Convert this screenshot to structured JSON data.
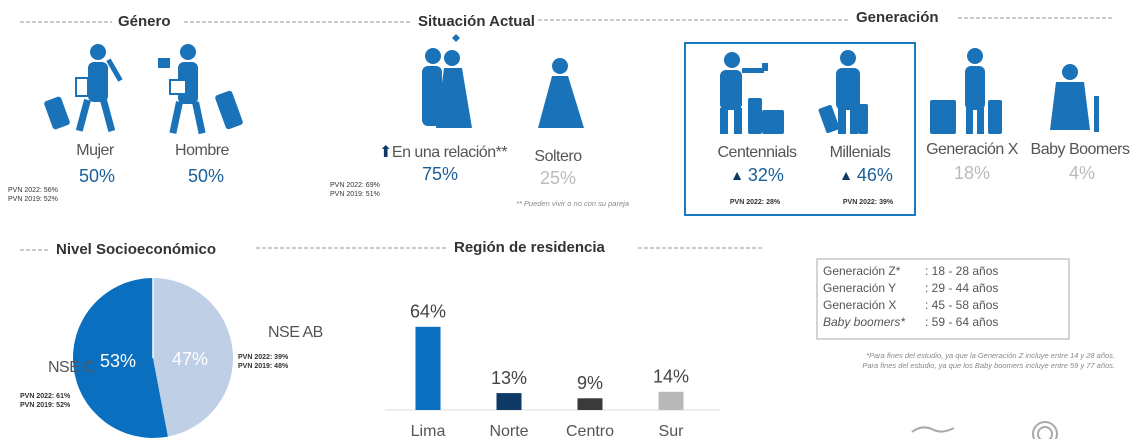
{
  "genero": {
    "title": "Género",
    "items": [
      {
        "label": "Mujer",
        "value": "50%"
      },
      {
        "label": "Hombre",
        "value": "50%"
      }
    ],
    "pvn": [
      "PVN 2022: 56%",
      "PVN 2019: 52%"
    ]
  },
  "situacion": {
    "title": "Situación Actual",
    "items": [
      {
        "label": "En una relación**",
        "value": "75%"
      },
      {
        "label": "Soltero",
        "value": "25%"
      }
    ],
    "pvn": [
      "PVN 2022: 69%",
      "PVN 2019: 51%"
    ],
    "note": "** Pueden vivir o no con su pareja"
  },
  "generacion": {
    "title": "Generación",
    "items": [
      {
        "label": "Centennials",
        "value": "32%",
        "pvn": "PVN 2022: 28%"
      },
      {
        "label": "Millenials",
        "value": "46%",
        "pvn": "PVN 2022: 39%"
      },
      {
        "label": "Generación X",
        "value": "18%"
      },
      {
        "label": "Baby Boomers",
        "value": "4%"
      }
    ]
  },
  "rangos": {
    "rows": [
      {
        "name": "Generación Z*",
        "range": ":  18 - 28 años"
      },
      {
        "name": "Generación Y",
        "range": ":  29 - 44 años"
      },
      {
        "name": "Generación X",
        "range": ":  45 - 58 años"
      },
      {
        "name": "Baby boomers*",
        "range": ": 59 - 64 años"
      }
    ],
    "notes": [
      "*Para fines del estudio, ya que la Generación Z  incluye entre 14 y 28 años.",
      "Para fines del estudio, ya que los Baby boomers incluye entre 59 y 77 años."
    ]
  },
  "chart_data": [
    {
      "type": "pie",
      "title": "Nivel Socioeconómico",
      "categories": [
        "NSE C",
        "NSE AB"
      ],
      "values": [
        53,
        47
      ],
      "value_labels": [
        "53%",
        "47%"
      ],
      "colors": [
        "#0a6fbf",
        "#bfcfe5"
      ],
      "annotations": [
        [
          "PVN 2022: 61%",
          "PVN 2019: 52%"
        ],
        [
          "PVN 2022: 39%",
          "PVN 2019: 48%"
        ]
      ]
    },
    {
      "type": "bar",
      "title": "Región de residencia",
      "categories": [
        "Lima",
        "Norte",
        "Centro",
        "Sur"
      ],
      "values": [
        64,
        13,
        9,
        14
      ],
      "value_labels": [
        "64%",
        "13%",
        "9%",
        "14%"
      ],
      "colors": [
        "#0a6fbf",
        "#0e3a66",
        "#3a3a3a",
        "#b8b8b8"
      ]
    }
  ]
}
